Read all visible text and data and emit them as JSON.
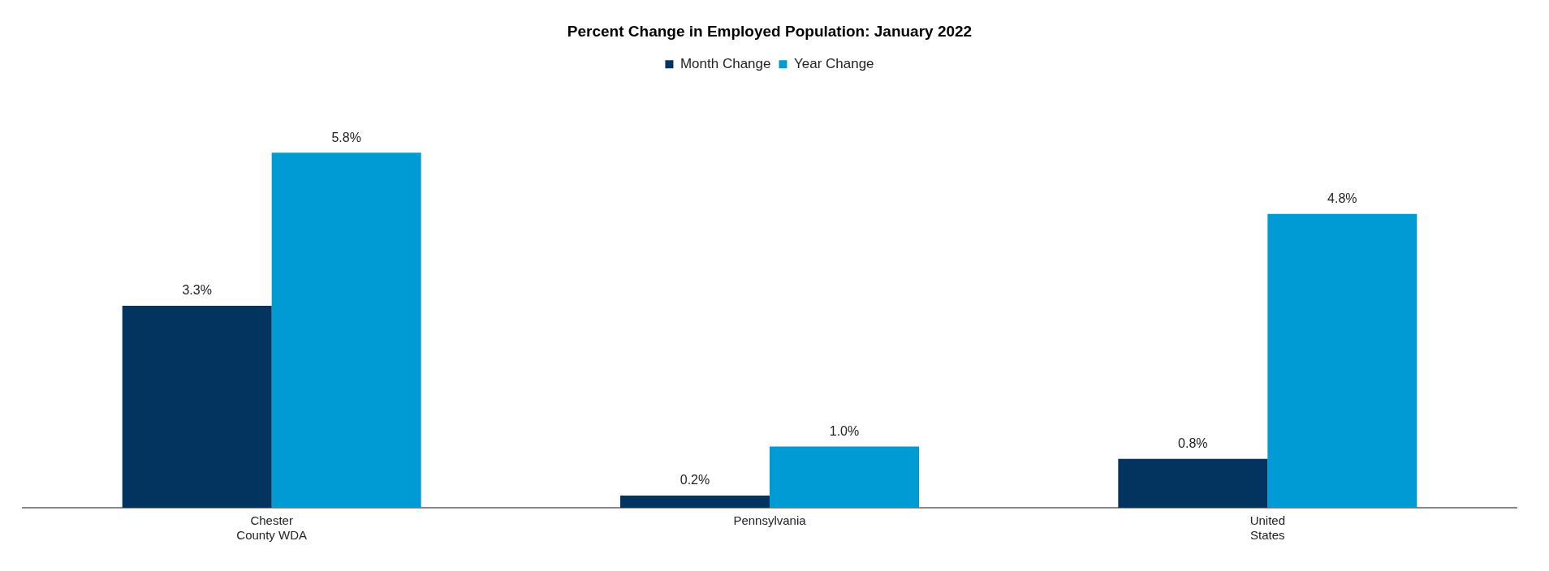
{
  "chart_data": {
    "type": "bar",
    "title": "Percent Change in Employed Population: January 2022",
    "categories": [
      "Chester County WDA",
      "Pennsylvania",
      "United States"
    ],
    "series": [
      {
        "name": "Month Change",
        "color": "#03335f",
        "values": [
          3.3,
          0.2,
          0.8
        ],
        "value_labels": [
          "3.3%",
          "0.2%",
          "0.8%"
        ]
      },
      {
        "name": "Year Change",
        "color": "#009bd5",
        "values": [
          5.8,
          1.0,
          4.8
        ],
        "value_labels": [
          "5.8%",
          "1.0%",
          "4.8%"
        ]
      }
    ],
    "legend": "top",
    "grid": false,
    "tick_labels": "x"
  }
}
